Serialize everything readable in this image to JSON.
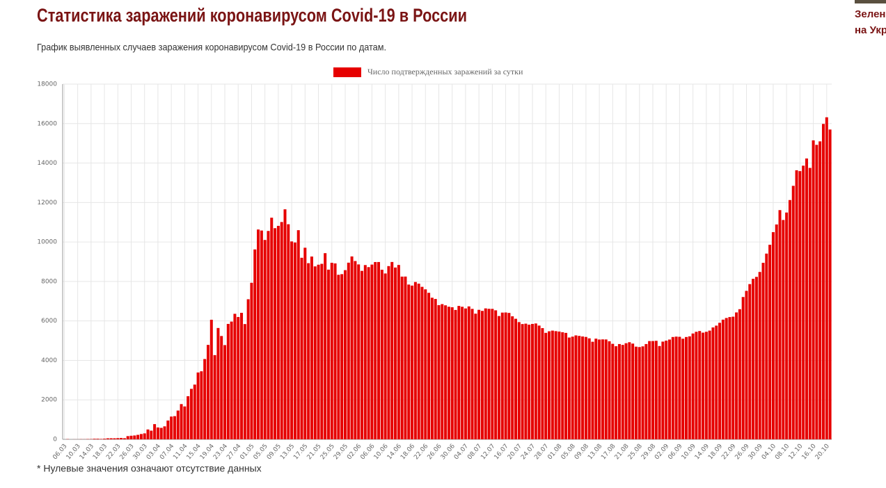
{
  "chart_data": {
    "type": "bar",
    "title": "Статистика заражений коронавирусом Covid-19 в России",
    "subtitle": "График выявленных случаев заражения коронавирусом Covid-19 в России по датам.",
    "note": "* Нулевые значения означают отсутствие данных",
    "categories": [
      "06.03",
      null,
      null,
      null,
      "10.03",
      null,
      null,
      null,
      "14.03",
      null,
      null,
      null,
      "18.03",
      null,
      null,
      null,
      "22.03",
      null,
      null,
      null,
      "26.03",
      null,
      null,
      null,
      "30.03",
      null,
      null,
      null,
      "03.04",
      null,
      null,
      null,
      "07.04",
      null,
      null,
      null,
      "11.04",
      null,
      null,
      null,
      "15.04",
      null,
      null,
      null,
      "19.04",
      null,
      null,
      null,
      "23.04",
      null,
      null,
      null,
      "27.04",
      null,
      null,
      null,
      "01.05",
      null,
      null,
      null,
      "05.05",
      null,
      null,
      null,
      "09.05",
      null,
      null,
      null,
      "13.05",
      null,
      null,
      null,
      "17.05",
      null,
      null,
      null,
      "21.05",
      null,
      null,
      null,
      "25.05",
      null,
      null,
      null,
      "29.05",
      null,
      null,
      null,
      "02.06",
      null,
      null,
      null,
      "06.06",
      null,
      null,
      null,
      "10.06",
      null,
      null,
      null,
      "14.06",
      null,
      null,
      null,
      "18.06",
      null,
      null,
      null,
      "22.06",
      null,
      null,
      null,
      "26.06",
      null,
      null,
      null,
      "30.06",
      null,
      null,
      null,
      "04.07",
      null,
      null,
      null,
      "08.07",
      null,
      null,
      null,
      "12.07",
      null,
      null,
      null,
      "16.07",
      null,
      null,
      null,
      "20.07",
      null,
      null,
      null,
      "24.07",
      null,
      null,
      null,
      "28.07",
      null,
      null,
      null,
      "01.08",
      null,
      null,
      null,
      "05.08",
      null,
      null,
      null,
      "09.08",
      null,
      null,
      null,
      "13.08",
      null,
      null,
      null,
      "17.08",
      null,
      null,
      null,
      "21.08",
      null,
      null,
      null,
      "25.08",
      null,
      null,
      null,
      "29.08",
      null,
      null,
      null,
      "02.09",
      null,
      null,
      null,
      "06.09",
      null,
      null,
      null,
      "10.09",
      null,
      null,
      null,
      "14.09",
      null,
      null,
      null,
      "18.09",
      null,
      null,
      null,
      "22.09",
      null,
      null,
      null,
      "26.09",
      null,
      null,
      null,
      "30.09",
      null,
      null,
      null,
      "04.10",
      null,
      null,
      null,
      "08.10",
      null,
      null,
      null,
      "12.10",
      null,
      null,
      null,
      "16.10",
      null,
      null,
      null,
      "20.10",
      null
    ],
    "series": [
      {
        "name": "Число подтвержденных заражений за сутки",
        "color": "#e60000",
        "values": [
          0,
          10,
          0,
          3,
          3,
          8,
          6,
          14,
          14,
          29,
          30,
          21,
          33,
          52,
          54,
          53,
          61,
          71,
          57,
          163,
          182,
          196,
          228,
          270,
          302,
          500,
          440,
          771,
          601,
          582,
          658,
          954,
          1154,
          1175,
          1459,
          1786,
          1667,
          2186,
          2558,
          2774,
          3388,
          3448,
          4070,
          4785,
          6060,
          4268,
          5642,
          5236,
          4774,
          5849,
          5966,
          6361,
          6198,
          6411,
          5841,
          7099,
          7933,
          9623,
          10633,
          10581,
          10102,
          10559,
          11231,
          10699,
          10817,
          11012,
          11656,
          10899,
          10028,
          9974,
          10598,
          9200,
          9709,
          8926,
          9263,
          8764,
          8849,
          8894,
          9434,
          8599,
          8946,
          8915,
          8338,
          8371,
          8572,
          8952,
          9268,
          9035,
          8863,
          8536,
          8831,
          8726,
          8855,
          8984,
          8985,
          8595,
          8404,
          8779,
          8987,
          8706,
          8835,
          8246,
          8248,
          7843,
          7790,
          7972,
          7889,
          7728,
          7600,
          7425,
          7176,
          7113,
          6800,
          6852,
          6791,
          6719,
          6693,
          6556,
          6760,
          6718,
          6632,
          6736,
          6611,
          6368,
          6562,
          6509,
          6635,
          6615,
          6611,
          6537,
          6248,
          6422,
          6428,
          6406,
          6234,
          6109,
          5940,
          5842,
          5862,
          5811,
          5848,
          5871,
          5765,
          5635,
          5395,
          5475,
          5509,
          5482,
          5462,
          5427,
          5394,
          5159,
          5204,
          5267,
          5241,
          5212,
          5189,
          5118,
          4945,
          5102,
          5057,
          5065,
          5061,
          4969,
          4839,
          4718,
          4828,
          4785,
          4870,
          4921,
          4852,
          4696,
          4676,
          4711,
          4829,
          4979,
          4980,
          4993,
          4729,
          4952,
          5001,
          5056,
          5185,
          5205,
          5195,
          5099,
          5185,
          5218,
          5363,
          5449,
          5488,
          5406,
          5449,
          5509,
          5670,
          5762,
          5905,
          6065,
          6148,
          6196,
          6215,
          6431,
          6595,
          7212,
          7523,
          7867,
          8135,
          8232,
          8481,
          8945,
          9412,
          9859,
          10499,
          10888,
          11615,
          11115,
          11493,
          12126,
          12846,
          13634,
          13592,
          13868,
          14231,
          13754,
          15150,
          14922,
          15099,
          15982,
          16319,
          15700
        ]
      }
    ],
    "ylim": [
      0,
      18000
    ],
    "yticks": [
      0,
      2000,
      4000,
      6000,
      8000,
      10000,
      12000,
      14000,
      16000,
      18000
    ],
    "grid": true,
    "legend": "top"
  },
  "sidebar": {
    "lines": [
      "Зеленс",
      "на Укра"
    ]
  }
}
